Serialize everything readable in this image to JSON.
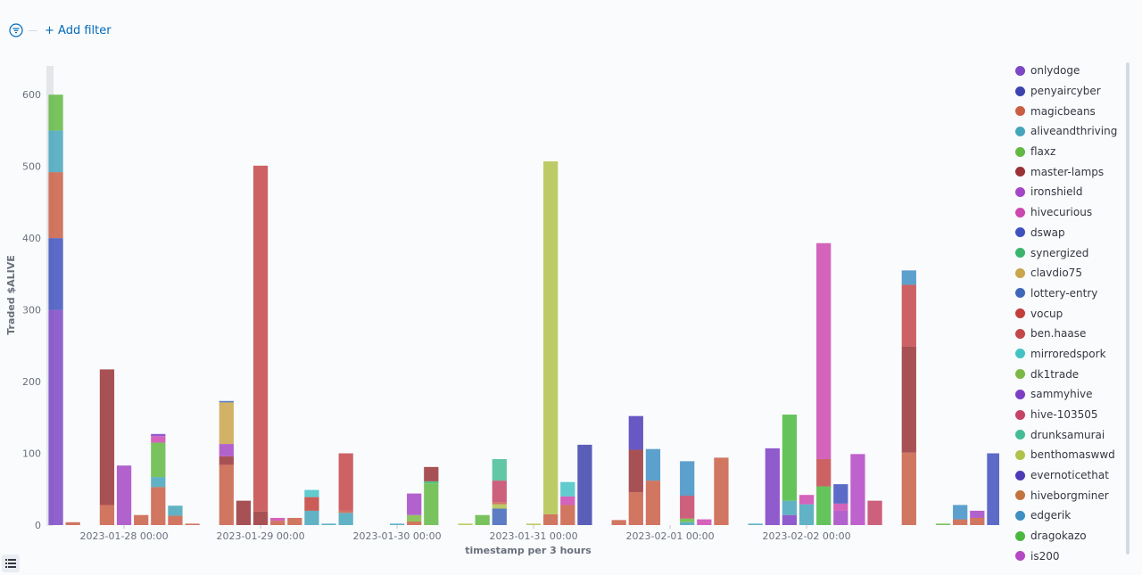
{
  "filter_bar": {
    "add_filter_label": "+ Add filter"
  },
  "chart_data": {
    "type": "bar",
    "stacked": true,
    "ylabel": "Traded $ALIVE",
    "xlabel": "timestamp per 3 hours",
    "ylim": [
      0,
      640
    ],
    "yticks": [
      0,
      100,
      200,
      300,
      400,
      500,
      600
    ],
    "x_tick_labels": [
      "2023-01-28 00:00",
      "2023-01-29 00:00",
      "2023-01-30 00:00",
      "2023-01-31 00:00",
      "2023-02-01 00:00",
      "2023-02-02 00:00"
    ],
    "x_tick_slot": [
      4.5,
      12.5,
      20.5,
      28.5,
      36.5,
      44.5
    ],
    "slot_count": 56,
    "grid": false,
    "legend_position": "right",
    "legend": [
      {
        "name": "onlydoge",
        "color": "#7b47c4"
      },
      {
        "name": "penyaircyber",
        "color": "#3c43ad"
      },
      {
        "name": "magicbeans",
        "color": "#c95e45"
      },
      {
        "name": "aliveandthriving",
        "color": "#45a5ba"
      },
      {
        "name": "flaxz",
        "color": "#62b843"
      },
      {
        "name": "master-lamps",
        "color": "#993236"
      },
      {
        "name": "ironshield",
        "color": "#a447c4"
      },
      {
        "name": "hivecurious",
        "color": "#cc48b0"
      },
      {
        "name": "dswap",
        "color": "#3f51bd"
      },
      {
        "name": "synergized",
        "color": "#3bb56d"
      },
      {
        "name": "clavdio75",
        "color": "#c9a54b"
      },
      {
        "name": "lottery-entry",
        "color": "#3f66b8"
      },
      {
        "name": "vocup",
        "color": "#c23f3a"
      },
      {
        "name": "ben.haase",
        "color": "#c4474a"
      },
      {
        "name": "mirroredspork",
        "color": "#45c2c4"
      },
      {
        "name": "dk1trade",
        "color": "#7cb845"
      },
      {
        "name": "sammyhive",
        "color": "#7d3ec4"
      },
      {
        "name": "hive-103505",
        "color": "#c44466"
      },
      {
        "name": "drunksamurai",
        "color": "#45bd94"
      },
      {
        "name": "benthomaswwd",
        "color": "#b0c24a"
      },
      {
        "name": "evernoticethat",
        "color": "#4d3bb8"
      },
      {
        "name": "hiveborgminer",
        "color": "#c2743f"
      },
      {
        "name": "edgerik",
        "color": "#3f8fc4"
      },
      {
        "name": "dragokazo",
        "color": "#4ab83f"
      },
      {
        "name": "is200",
        "color": "#b347c4"
      }
    ],
    "bars": [
      {
        "slot": 0,
        "segments": [
          {
            "color": "#7b47c4",
            "value": 300
          },
          {
            "color": "#3f51bd",
            "value": 100
          },
          {
            "color": "#c95e45",
            "value": 92
          },
          {
            "color": "#45a5ba",
            "value": 58
          },
          {
            "color": "#62b843",
            "value": 50
          }
        ]
      },
      {
        "slot": 1,
        "segments": [
          {
            "color": "#c95e45",
            "value": 4
          }
        ]
      },
      {
        "slot": 3,
        "segments": [
          {
            "color": "#c95e45",
            "value": 28
          },
          {
            "color": "#993236",
            "value": 189
          }
        ]
      },
      {
        "slot": 4,
        "segments": [
          {
            "color": "#a447c4",
            "value": 83
          }
        ]
      },
      {
        "slot": 5,
        "segments": [
          {
            "color": "#c95e45",
            "value": 14
          }
        ]
      },
      {
        "slot": 6,
        "segments": [
          {
            "color": "#c95e45",
            "value": 53
          },
          {
            "color": "#45a5ba",
            "value": 14
          },
          {
            "color": "#62b843",
            "value": 48
          },
          {
            "color": "#cc48b0",
            "value": 9
          },
          {
            "color": "#7d3ec4",
            "value": 3
          }
        ]
      },
      {
        "slot": 7,
        "segments": [
          {
            "color": "#c95e45",
            "value": 13
          },
          {
            "color": "#45a5ba",
            "value": 14
          }
        ]
      },
      {
        "slot": 8,
        "segments": [
          {
            "color": "#c95e45",
            "value": 2
          }
        ]
      },
      {
        "slot": 10,
        "segments": [
          {
            "color": "#c95e45",
            "value": 84
          },
          {
            "color": "#993236",
            "value": 12
          },
          {
            "color": "#a447c4",
            "value": 17
          },
          {
            "color": "#c9a54b",
            "value": 58
          },
          {
            "color": "#3f66b8",
            "value": 2
          }
        ]
      },
      {
        "slot": 11,
        "segments": [
          {
            "color": "#993236",
            "value": 34
          }
        ]
      },
      {
        "slot": 12,
        "segments": [
          {
            "color": "#993236",
            "value": 19
          },
          {
            "color": "#c4474a",
            "value": 482
          }
        ]
      },
      {
        "slot": 13,
        "segments": [
          {
            "color": "#c95e45",
            "value": 6
          },
          {
            "color": "#cc48b0",
            "value": 4
          }
        ]
      },
      {
        "slot": 14,
        "segments": [
          {
            "color": "#c95e45",
            "value": 10
          }
        ]
      },
      {
        "slot": 15,
        "segments": [
          {
            "color": "#45a5ba",
            "value": 20
          },
          {
            "color": "#c23f3a",
            "value": 19
          },
          {
            "color": "#45c2c4",
            "value": 10
          }
        ]
      },
      {
        "slot": 16,
        "segments": [
          {
            "color": "#45a5ba",
            "value": 2
          }
        ]
      },
      {
        "slot": 17,
        "segments": [
          {
            "color": "#45a5ba",
            "value": 17
          },
          {
            "color": "#c95e45",
            "value": 3
          },
          {
            "color": "#c4474a",
            "value": 80
          }
        ]
      },
      {
        "slot": 20,
        "segments": [
          {
            "color": "#45a5ba",
            "value": 2
          }
        ]
      },
      {
        "slot": 21,
        "segments": [
          {
            "color": "#c95e45",
            "value": 5
          },
          {
            "color": "#7cb845",
            "value": 9
          },
          {
            "color": "#a447c4",
            "value": 30
          }
        ]
      },
      {
        "slot": 22,
        "segments": [
          {
            "color": "#62b843",
            "value": 58
          },
          {
            "color": "#3bb56d",
            "value": 3
          },
          {
            "color": "#993236",
            "value": 20
          }
        ]
      },
      {
        "slot": 24,
        "segments": [
          {
            "color": "#b0c24a",
            "value": 2
          }
        ]
      },
      {
        "slot": 25,
        "segments": [
          {
            "color": "#62b843",
            "value": 14
          }
        ]
      },
      {
        "slot": 26,
        "segments": [
          {
            "color": "#3f66b8",
            "value": 23
          },
          {
            "color": "#b0c24a",
            "value": 6
          },
          {
            "color": "#c95e45",
            "value": 3
          },
          {
            "color": "#c44466",
            "value": 30
          },
          {
            "color": "#45bd94",
            "value": 30
          }
        ]
      },
      {
        "slot": 28,
        "segments": [
          {
            "color": "#b0c24a",
            "value": 2
          }
        ]
      },
      {
        "slot": 29,
        "segments": [
          {
            "color": "#c95e45",
            "value": 15
          },
          {
            "color": "#b0c24a",
            "value": 492
          }
        ]
      },
      {
        "slot": 30,
        "segments": [
          {
            "color": "#c95e45",
            "value": 28
          },
          {
            "color": "#cc48b0",
            "value": 12
          },
          {
            "color": "#45c2c4",
            "value": 20
          }
        ]
      },
      {
        "slot": 31,
        "segments": [
          {
            "color": "#3c43ad",
            "value": 112
          }
        ]
      },
      {
        "slot": 33,
        "segments": [
          {
            "color": "#c95e45",
            "value": 7
          }
        ]
      },
      {
        "slot": 34,
        "segments": [
          {
            "color": "#c95e45",
            "value": 46
          },
          {
            "color": "#993236",
            "value": 59
          },
          {
            "color": "#4d3bb8",
            "value": 47
          }
        ]
      },
      {
        "slot": 35,
        "segments": [
          {
            "color": "#c95e45",
            "value": 62
          },
          {
            "color": "#3f8fc4",
            "value": 44
          }
        ]
      },
      {
        "slot": 37,
        "segments": [
          {
            "color": "#45a5ba",
            "value": 4
          },
          {
            "color": "#62b843",
            "value": 5
          },
          {
            "color": "#c44466",
            "value": 32
          },
          {
            "color": "#3f8fc4",
            "value": 48
          }
        ]
      },
      {
        "slot": 38,
        "segments": [
          {
            "color": "#cc48b0",
            "value": 8
          }
        ]
      },
      {
        "slot": 39,
        "segments": [
          {
            "color": "#c95e45",
            "value": 94
          }
        ]
      },
      {
        "slot": 41,
        "segments": [
          {
            "color": "#45a5ba",
            "value": 2
          }
        ]
      },
      {
        "slot": 42,
        "segments": [
          {
            "color": "#7d3ec4",
            "value": 107
          }
        ]
      },
      {
        "slot": 43,
        "segments": [
          {
            "color": "#7d3ec4",
            "value": 14
          },
          {
            "color": "#45a5ba",
            "value": 20
          },
          {
            "color": "#4ab83f",
            "value": 120
          }
        ]
      },
      {
        "slot": 44,
        "segments": [
          {
            "color": "#45a5ba",
            "value": 29
          },
          {
            "color": "#cc48b0",
            "value": 13
          }
        ]
      },
      {
        "slot": 45,
        "segments": [
          {
            "color": "#4ab83f",
            "value": 54
          },
          {
            "color": "#c4474a",
            "value": 38
          },
          {
            "color": "#cc48b0",
            "value": 301
          }
        ]
      },
      {
        "slot": 46,
        "segments": [
          {
            "color": "#a447c4",
            "value": 20
          },
          {
            "color": "#cc48b0",
            "value": 10
          },
          {
            "color": "#3f51bd",
            "value": 27
          }
        ]
      },
      {
        "slot": 47,
        "segments": [
          {
            "color": "#b347c4",
            "value": 99
          }
        ]
      },
      {
        "slot": 48,
        "segments": [
          {
            "color": "#c44466",
            "value": 34
          }
        ]
      },
      {
        "slot": 50,
        "segments": [
          {
            "color": "#c95e45",
            "value": 101
          },
          {
            "color": "#993236",
            "value": 148
          },
          {
            "color": "#c4474a",
            "value": 86
          },
          {
            "color": "#3f8fc4",
            "value": 20
          }
        ]
      },
      {
        "slot": 52,
        "segments": [
          {
            "color": "#62b843",
            "value": 2
          }
        ]
      },
      {
        "slot": 53,
        "segments": [
          {
            "color": "#c95e45",
            "value": 8
          },
          {
            "color": "#3f8fc4",
            "value": 20
          }
        ]
      },
      {
        "slot": 54,
        "segments": [
          {
            "color": "#c95e45",
            "value": 10
          },
          {
            "color": "#a447c4",
            "value": 10
          }
        ]
      },
      {
        "slot": 55,
        "segments": [
          {
            "color": "#3f51bd",
            "value": 100
          }
        ]
      }
    ]
  }
}
